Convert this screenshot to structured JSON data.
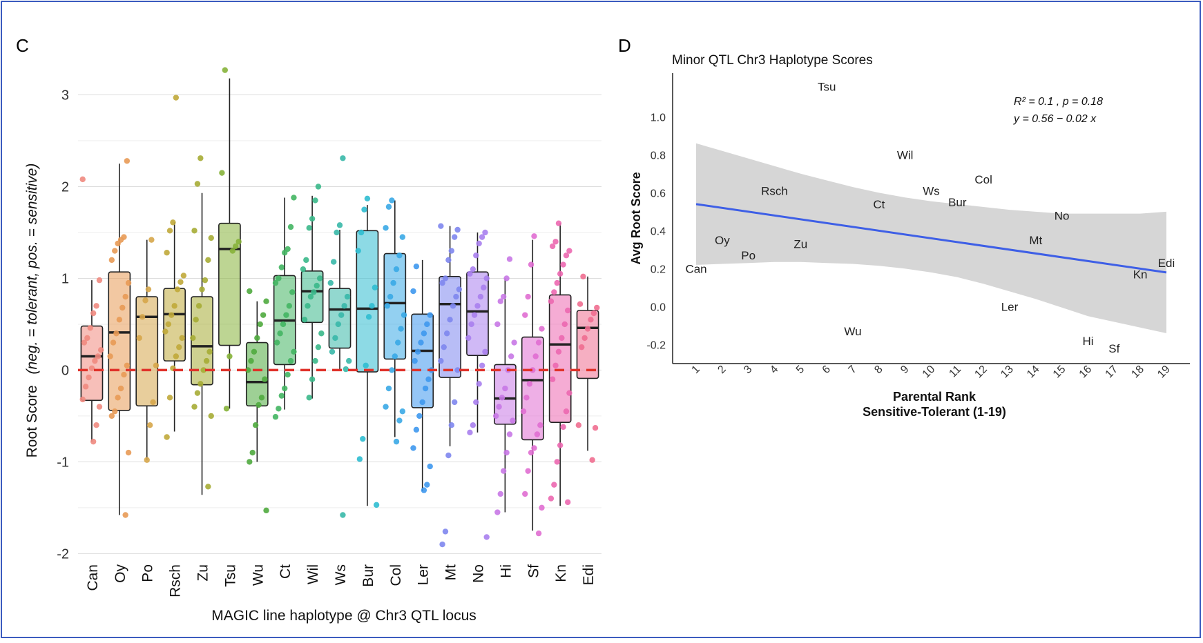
{
  "panel_c_label": "C",
  "panel_d_label": "D",
  "chart_data": [
    {
      "type": "box",
      "panel": "C",
      "title": "",
      "xlabel": "MAGIC line haplotype @ Chr3 QTL locus",
      "ylabel_main": "Root Score",
      "ylabel_sub": "(neg. = tolerant, pos. = sensitive)",
      "ylim": [
        -2.05,
        3.35
      ],
      "yticks": [
        -2,
        -1,
        0,
        1,
        2,
        3
      ],
      "reference_line_y": 0,
      "reference_line_color": "#e0322a",
      "grid": true,
      "categories": [
        "Can",
        "Oy",
        "Po",
        "Rsch",
        "Zu",
        "Tsu",
        "Wu",
        "Ct",
        "Wil",
        "Ws",
        "Bur",
        "Col",
        "Ler",
        "Mt",
        "No",
        "Hi",
        "Sf",
        "Kn",
        "Edi"
      ],
      "colors": [
        "#f08a80",
        "#e89a55",
        "#d6a64a",
        "#c0a93a",
        "#a6ac35",
        "#86b33a",
        "#4faa3e",
        "#43b562",
        "#3ab88a",
        "#38b8a8",
        "#2fbcd0",
        "#3aa9e6",
        "#3e98ee",
        "#7e86ee",
        "#a97fee",
        "#c878e6",
        "#e06ed2",
        "#ec68b0",
        "#ef6e90"
      ],
      "boxes": [
        {
          "min": -0.78,
          "q1": -0.33,
          "median": 0.15,
          "q3": 0.48,
          "max": 0.98
        },
        {
          "min": -1.58,
          "q1": -0.44,
          "median": 0.41,
          "q3": 1.07,
          "max": 2.25
        },
        {
          "min": -0.98,
          "q1": -0.39,
          "median": 0.58,
          "q3": 0.8,
          "max": 1.42
        },
        {
          "min": -0.67,
          "q1": 0.1,
          "median": 0.61,
          "q3": 0.89,
          "max": 1.61
        },
        {
          "min": -1.36,
          "q1": -0.16,
          "median": 0.26,
          "q3": 0.8,
          "max": 1.93
        },
        {
          "min": -0.42,
          "q1": 0.27,
          "median": 1.32,
          "q3": 1.6,
          "max": 3.18
        },
        {
          "min": -1.0,
          "q1": -0.39,
          "median": -0.13,
          "q3": 0.3,
          "max": 0.75
        },
        {
          "min": -0.43,
          "q1": 0.06,
          "median": 0.54,
          "q3": 1.03,
          "max": 1.88
        },
        {
          "min": -0.31,
          "q1": 0.52,
          "median": 0.86,
          "q3": 1.08,
          "max": 1.9
        },
        {
          "min": 0.01,
          "q1": 0.24,
          "median": 0.66,
          "q3": 0.89,
          "max": 1.53
        },
        {
          "min": -1.48,
          "q1": -0.02,
          "median": 0.67,
          "q3": 1.52,
          "max": 1.8
        },
        {
          "min": -0.73,
          "q1": 0.12,
          "median": 0.73,
          "q3": 1.27,
          "max": 1.85
        },
        {
          "min": -1.32,
          "q1": -0.41,
          "median": 0.21,
          "q3": 0.61,
          "max": 1.2
        },
        {
          "min": -0.83,
          "q1": -0.08,
          "median": 0.72,
          "q3": 1.02,
          "max": 1.57
        },
        {
          "min": -0.68,
          "q1": 0.16,
          "median": 0.64,
          "q3": 1.07,
          "max": 1.5
        },
        {
          "min": -1.55,
          "q1": -0.59,
          "median": -0.31,
          "q3": 0.06,
          "max": 1.0
        },
        {
          "min": -1.75,
          "q1": -0.76,
          "median": -0.11,
          "q3": 0.36,
          "max": 1.42
        },
        {
          "min": -1.48,
          "q1": -0.57,
          "median": 0.28,
          "q3": 0.82,
          "max": 1.6
        },
        {
          "min": -0.88,
          "q1": -0.09,
          "median": 0.46,
          "q3": 0.65,
          "max": 1.02
        }
      ],
      "points": [
        [
          2.08,
          0.98,
          0.7,
          0.62,
          0.46,
          0.35,
          0.3,
          0.22,
          0.15,
          0.1,
          0.02,
          -0.08,
          -0.18,
          -0.32,
          -0.4,
          -0.6,
          -0.78
        ],
        [
          2.28,
          1.45,
          1.42,
          1.38,
          1.3,
          1.2,
          0.95,
          0.8,
          0.68,
          0.55,
          0.4,
          0.3,
          0.15,
          0.05,
          -0.05,
          -0.2,
          -0.3,
          -0.45,
          -0.5,
          -0.9,
          -1.58
        ],
        [
          1.42,
          0.88,
          0.76,
          0.58,
          0.35,
          0.05,
          -0.35,
          -0.6,
          -0.98
        ],
        [
          2.97,
          1.61,
          1.52,
          1.28,
          1.03,
          0.96,
          0.88,
          0.7,
          0.6,
          0.5,
          0.42,
          0.35,
          0.25,
          0.15,
          0.02,
          -0.3,
          -0.73
        ],
        [
          2.31,
          2.03,
          1.52,
          1.44,
          1.2,
          0.98,
          0.88,
          0.7,
          0.55,
          0.35,
          0.2,
          0.1,
          0.0,
          -0.15,
          -0.25,
          -0.4,
          -0.5,
          -1.27
        ],
        [
          3.27,
          2.15,
          1.4,
          1.35,
          1.3,
          0.15,
          -0.42
        ],
        [
          0.86,
          0.75,
          0.6,
          0.5,
          0.35,
          0.2,
          0.1,
          0.0,
          -0.1,
          -0.3,
          -0.38,
          -0.6,
          -0.9,
          -1.0,
          -1.53
        ],
        [
          1.88,
          1.56,
          1.32,
          1.28,
          1.12,
          1.0,
          0.95,
          0.85,
          0.7,
          0.6,
          0.5,
          0.4,
          0.3,
          0.2,
          0.1,
          -0.05,
          -0.2,
          -0.28,
          -0.42,
          -0.51
        ],
        [
          2.0,
          1.85,
          1.65,
          1.55,
          1.2,
          1.1,
          1.0,
          0.92,
          0.85,
          0.8,
          0.7,
          0.55,
          0.4,
          0.25,
          0.1,
          -0.1,
          -0.3
        ],
        [
          2.31,
          1.58,
          1.5,
          1.18,
          0.95,
          0.8,
          0.7,
          0.6,
          0.5,
          0.35,
          0.2,
          0.1,
          0.01,
          -1.58
        ],
        [
          1.87,
          1.75,
          1.5,
          1.3,
          0.9,
          0.7,
          0.58,
          0.05,
          -0.75,
          -0.97,
          -1.47
        ],
        [
          1.85,
          1.78,
          1.55,
          1.45,
          1.25,
          1.1,
          0.95,
          0.8,
          0.7,
          0.6,
          0.45,
          0.3,
          0.15,
          0.0,
          -0.2,
          -0.4,
          -0.45,
          -0.55,
          -0.78
        ],
        [
          1.13,
          0.86,
          0.6,
          0.5,
          0.4,
          0.3,
          0.2,
          0.1,
          0.0,
          -0.1,
          -0.2,
          -0.35,
          -0.5,
          -0.65,
          -0.85,
          -1.05,
          -1.25,
          -1.31
        ],
        [
          1.57,
          1.53,
          1.45,
          1.3,
          1.2,
          1.0,
          0.95,
          0.88,
          0.8,
          0.7,
          0.55,
          0.4,
          0.25,
          0.1,
          0.0,
          -0.35,
          -0.6,
          -0.93,
          -1.76,
          -1.9
        ],
        [
          1.5,
          1.45,
          1.38,
          1.25,
          1.1,
          1.05,
          1.0,
          0.9,
          0.8,
          0.7,
          0.6,
          0.5,
          0.35,
          0.2,
          0.05,
          -0.15,
          -0.35,
          -0.6,
          -0.68,
          -1.82
        ],
        [
          1.21,
          1.0,
          0.8,
          0.75,
          0.5,
          0.3,
          0.15,
          0.0,
          -0.2,
          -0.3,
          -0.4,
          -0.5,
          -0.55,
          -0.7,
          -0.9,
          -1.1,
          -1.35,
          -1.55
        ],
        [
          1.46,
          1.15,
          0.8,
          0.6,
          0.45,
          0.3,
          0.15,
          0.0,
          -0.15,
          -0.3,
          -0.45,
          -0.6,
          -0.7,
          -0.85,
          -0.9,
          -1.1,
          -1.35,
          -1.5,
          -1.78
        ],
        [
          1.6,
          1.4,
          1.35,
          1.3,
          1.25,
          1.15,
          1.05,
          0.95,
          0.85,
          0.75,
          0.65,
          0.5,
          0.35,
          0.2,
          0.05,
          -0.1,
          -0.25,
          -0.45,
          -0.62,
          -0.82,
          -1.0,
          -1.25,
          -1.4,
          -1.44
        ],
        [
          1.02,
          0.72,
          0.68,
          0.62,
          0.55,
          0.45,
          0.35,
          0.25,
          -0.6,
          -0.63,
          -0.98
        ]
      ]
    },
    {
      "type": "scatter",
      "panel": "D",
      "title": "Minor QTL Chr3 Haplotype Scores",
      "xlabel_line1": "Parental Rank",
      "xlabel_line2": "Sensitive-Tolerant (1-19)",
      "ylabel": "Avg Root Score",
      "xlim": [
        0.1,
        19.9
      ],
      "ylim": [
        -0.3,
        1.23
      ],
      "xticks": [
        "1",
        "2",
        "3",
        "4",
        "5",
        "6",
        "7",
        "8",
        "9",
        "10",
        "11",
        "12",
        "13",
        "14",
        "15",
        "16",
        "17",
        "18",
        "19"
      ],
      "yticks": [
        -0.2,
        0.0,
        0.2,
        0.4,
        0.6,
        0.8,
        1.0
      ],
      "annotation_line1": "R² = 0.1 , p = 0.18",
      "annotation_line2": "y = 0.56 − 0.02 x",
      "fit": {
        "x": [
          1,
          19
        ],
        "y": [
          0.54,
          0.18
        ],
        "color": "#3e5fe6"
      },
      "ci_band": {
        "x": [
          1,
          2,
          3,
          4,
          5,
          6,
          7,
          8,
          9,
          10,
          11,
          12,
          13,
          14,
          15,
          16,
          17,
          18,
          19
        ],
        "upper": [
          0.86,
          0.82,
          0.78,
          0.74,
          0.7,
          0.665,
          0.63,
          0.6,
          0.575,
          0.555,
          0.54,
          0.525,
          0.51,
          0.5,
          0.49,
          0.49,
          0.49,
          0.49,
          0.5
        ],
        "lower": [
          0.22,
          0.225,
          0.23,
          0.235,
          0.235,
          0.23,
          0.225,
          0.215,
          0.2,
          0.18,
          0.155,
          0.12,
          0.08,
          0.04,
          -0.005,
          -0.05,
          -0.08,
          -0.11,
          -0.14
        ]
      },
      "labels": [
        {
          "text": "Can",
          "x": 1,
          "y": 0.2
        },
        {
          "text": "Oy",
          "x": 2,
          "y": 0.35
        },
        {
          "text": "Po",
          "x": 3,
          "y": 0.27
        },
        {
          "text": "Rsch",
          "x": 4,
          "y": 0.61
        },
        {
          "text": "Zu",
          "x": 5,
          "y": 0.33
        },
        {
          "text": "Tsu",
          "x": 6,
          "y": 1.16
        },
        {
          "text": "Wu",
          "x": 7,
          "y": -0.13
        },
        {
          "text": "Ct",
          "x": 8,
          "y": 0.54
        },
        {
          "text": "Wil",
          "x": 9,
          "y": 0.8
        },
        {
          "text": "Ws",
          "x": 10,
          "y": 0.61
        },
        {
          "text": "Bur",
          "x": 11,
          "y": 0.55
        },
        {
          "text": "Col",
          "x": 12,
          "y": 0.67
        },
        {
          "text": "Ler",
          "x": 13,
          "y": 0.0
        },
        {
          "text": "Mt",
          "x": 14,
          "y": 0.35
        },
        {
          "text": "No",
          "x": 15,
          "y": 0.48
        },
        {
          "text": "Hi",
          "x": 16,
          "y": -0.18
        },
        {
          "text": "Sf",
          "x": 17,
          "y": -0.22
        },
        {
          "text": "Kn",
          "x": 18,
          "y": 0.17
        },
        {
          "text": "Edi",
          "x": 19,
          "y": 0.23
        }
      ]
    }
  ]
}
